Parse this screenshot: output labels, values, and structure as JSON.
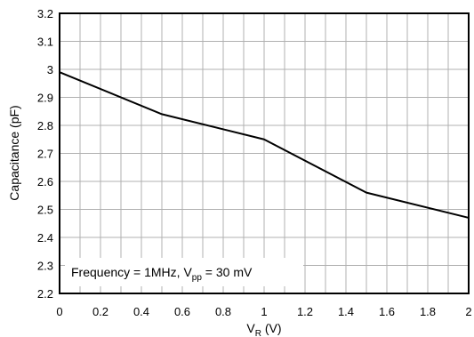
{
  "chart_data": {
    "type": "line",
    "xlabel": {
      "main": "V",
      "sub": "R",
      "unit": " (V)"
    },
    "ylabel": "Capacitance (pF)",
    "xlim": [
      0,
      2
    ],
    "ylim": [
      2.2,
      3.2
    ],
    "xticks": [
      "0",
      "0.2",
      "0.4",
      "0.6",
      "0.8",
      "1",
      "1.2",
      "1.4",
      "1.6",
      "1.8",
      "2"
    ],
    "yticks": [
      "2.2",
      "2.3",
      "2.4",
      "2.5",
      "2.6",
      "2.7",
      "2.8",
      "2.9",
      "3",
      "3.1",
      "3.2"
    ],
    "grid": true,
    "annotation": {
      "prefix": "Frequency = 1MHz, V",
      "sub": "pp",
      "suffix": " = 30 mV"
    },
    "series": [
      {
        "x": [
          0,
          0.5,
          1.0,
          1.5,
          2.0
        ],
        "y": [
          2.99,
          2.84,
          2.75,
          2.56,
          2.47
        ]
      }
    ],
    "colors": {
      "line": "#000000",
      "grid": "#b0b0b0",
      "frame": "#000000"
    }
  }
}
